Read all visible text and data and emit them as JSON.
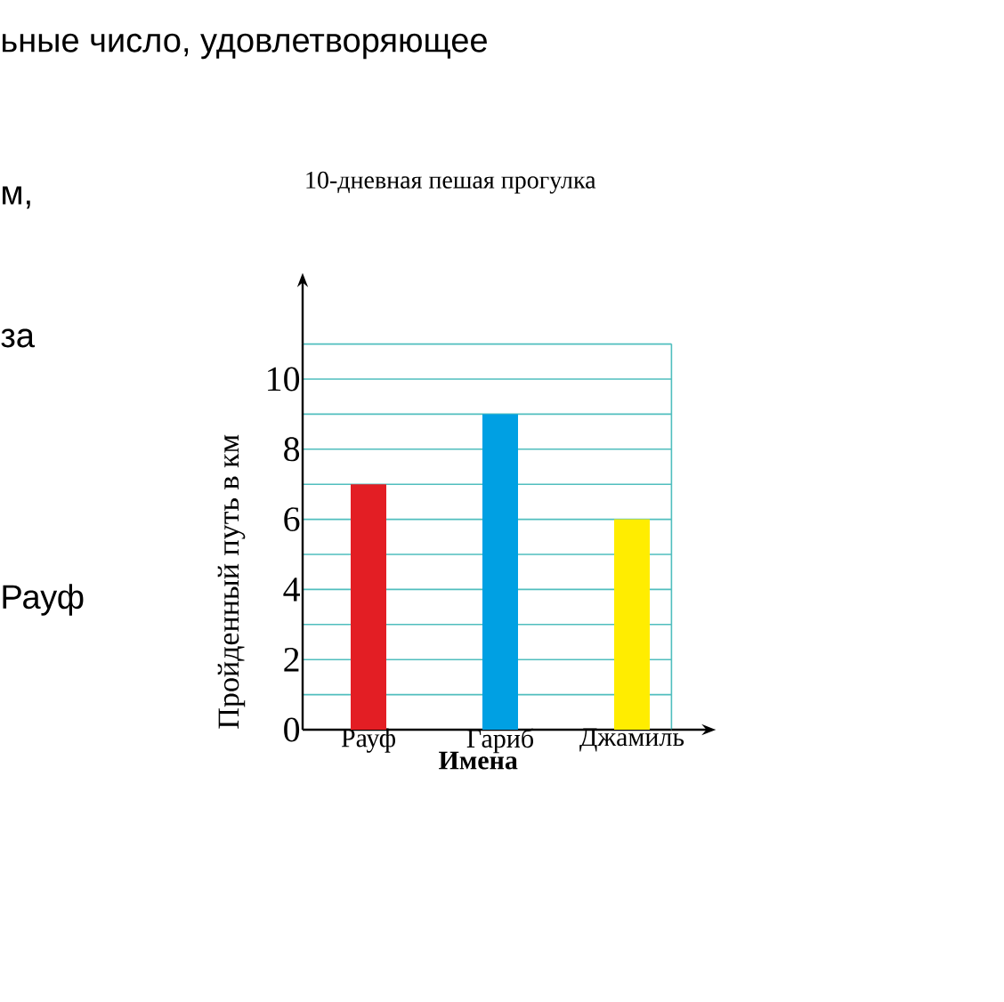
{
  "chart_data": {
    "type": "bar",
    "title": "10-дневная пешая прогулка",
    "xlabel": "Имена",
    "ylabel": "Пройденный путь в км",
    "categories": [
      "Рауф",
      "Гариб",
      "Джамиль"
    ],
    "values": [
      7,
      9,
      6
    ],
    "colors": [
      "#e31e24",
      "#00a0e3",
      "#ffed00"
    ],
    "ylim": [
      0,
      11
    ],
    "yticks": [
      0,
      {
        "value": 1,
        "label": null
      },
      2,
      {
        "value": 3,
        "label": null
      },
      4,
      {
        "value": 5,
        "label": null
      },
      6,
      {
        "value": 7,
        "label": null
      },
      8,
      {
        "value": 9,
        "label": null
      },
      10,
      {
        "value": 11,
        "label": null
      }
    ],
    "grid": "y",
    "annotations": [
      "ьные число, удовлетворяющее",
      "м,",
      "за",
      "Рауф"
    ]
  }
}
